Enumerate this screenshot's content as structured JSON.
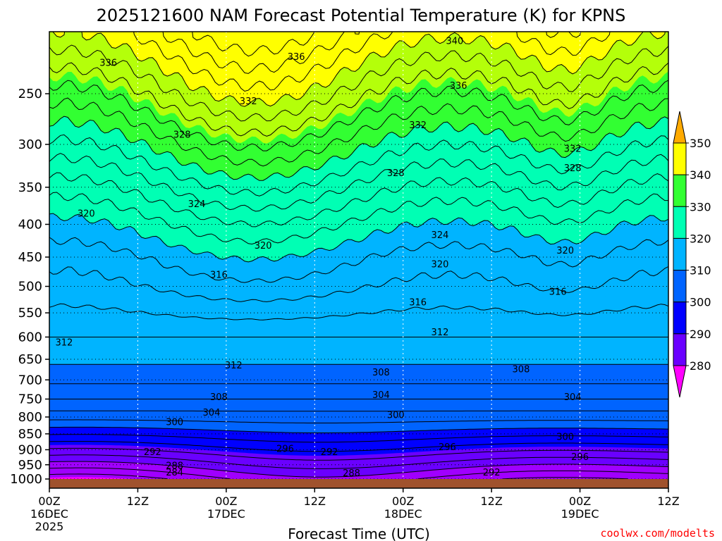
{
  "chart_data": {
    "type": "heatmap",
    "title": "2025121600 NAM Forecast Potential Temperature (K) for KPNS",
    "xlabel": "Forecast Time (UTC)",
    "ylabel": "",
    "x_ticks": [
      {
        "hours": 0,
        "lines": [
          "00Z",
          "16DEC",
          "2025"
        ]
      },
      {
        "hours": 12,
        "lines": [
          "12Z"
        ]
      },
      {
        "hours": 24,
        "lines": [
          "00Z",
          "17DEC"
        ]
      },
      {
        "hours": 36,
        "lines": [
          "12Z"
        ]
      },
      {
        "hours": 48,
        "lines": [
          "00Z",
          "18DEC"
        ]
      },
      {
        "hours": 60,
        "lines": [
          "12Z"
        ]
      },
      {
        "hours": 72,
        "lines": [
          "00Z",
          "19DEC"
        ]
      },
      {
        "hours": 84,
        "lines": [
          "12Z"
        ]
      }
    ],
    "xlim_hours": [
      0,
      84
    ],
    "y_ticks": [
      "250",
      "300",
      "350",
      "400",
      "450",
      "500",
      "550",
      "600",
      "650",
      "700",
      "750",
      "800",
      "850",
      "900",
      "950",
      "1000"
    ],
    "ylim_hpa": [
      1000,
      200
    ],
    "y_scale": "log",
    "grid": true,
    "colorbar": {
      "levels": [
        280,
        290,
        300,
        310,
        320,
        330,
        340,
        350
      ],
      "labels": [
        "280",
        "290",
        "300",
        "310",
        "320",
        "330",
        "340",
        "350"
      ],
      "colors": [
        "#ff00ff",
        "#a000ff",
        "#6a00ff",
        "#0000ff",
        "#0064ff",
        "#00b4ff",
        "#00ffb4",
        "#32ff32",
        "#b4ff0a",
        "#ffff00",
        "#ffaa00"
      ]
    },
    "contour_levels": [
      284,
      288,
      292,
      296,
      300,
      304,
      308,
      312,
      316,
      320,
      324,
      328,
      332,
      336,
      340
    ],
    "theta_profile": [
      {
        "p": 200,
        "theta": 343
      },
      {
        "p": 250,
        "theta": 336
      },
      {
        "p": 300,
        "theta": 330
      },
      {
        "p": 350,
        "theta": 325
      },
      {
        "p": 400,
        "theta": 321
      },
      {
        "p": 450,
        "theta": 318
      },
      {
        "p": 500,
        "theta": 316
      },
      {
        "p": 550,
        "theta": 314
      },
      {
        "p": 600,
        "theta": 312
      },
      {
        "p": 650,
        "theta": 310.5
      },
      {
        "p": 700,
        "theta": 308.5
      },
      {
        "p": 750,
        "theta": 306
      },
      {
        "p": 800,
        "theta": 303
      },
      {
        "p": 850,
        "theta": 299
      },
      {
        "p": 900,
        "theta": 295
      },
      {
        "p": 950,
        "theta": 291
      },
      {
        "p": 1000,
        "theta": 287
      }
    ],
    "contour_labels": [
      {
        "text": "340",
        "hours": 55,
        "p": 207
      },
      {
        "text": "336",
        "hours": 8,
        "p": 224
      },
      {
        "text": "336",
        "hours": 33.5,
        "p": 219
      },
      {
        "text": "336",
        "hours": 55.5,
        "p": 243
      },
      {
        "text": "332",
        "hours": 27,
        "p": 257
      },
      {
        "text": "332",
        "hours": 50,
        "p": 280
      },
      {
        "text": "332",
        "hours": 71,
        "p": 305
      },
      {
        "text": "328",
        "hours": 18,
        "p": 290
      },
      {
        "text": "328",
        "hours": 47,
        "p": 333
      },
      {
        "text": "328",
        "hours": 71,
        "p": 327
      },
      {
        "text": "324",
        "hours": 20,
        "p": 372
      },
      {
        "text": "324",
        "hours": 53,
        "p": 416
      },
      {
        "text": "320",
        "hours": 5,
        "p": 385
      },
      {
        "text": "320",
        "hours": 29,
        "p": 432
      },
      {
        "text": "320",
        "hours": 53,
        "p": 462
      },
      {
        "text": "320",
        "hours": 70,
        "p": 440
      },
      {
        "text": "316",
        "hours": 23,
        "p": 480
      },
      {
        "text": "316",
        "hours": 50,
        "p": 530
      },
      {
        "text": "316",
        "hours": 69,
        "p": 510
      },
      {
        "text": "312",
        "hours": 2,
        "p": 612
      },
      {
        "text": "312",
        "hours": 25,
        "p": 665
      },
      {
        "text": "312",
        "hours": 53,
        "p": 590
      },
      {
        "text": "308",
        "hours": 45,
        "p": 682
      },
      {
        "text": "308",
        "hours": 64,
        "p": 674
      },
      {
        "text": "308",
        "hours": 23,
        "p": 745
      },
      {
        "text": "304",
        "hours": 45,
        "p": 740
      },
      {
        "text": "304",
        "hours": 71,
        "p": 745
      },
      {
        "text": "304",
        "hours": 22,
        "p": 788
      },
      {
        "text": "300",
        "hours": 17,
        "p": 815
      },
      {
        "text": "300",
        "hours": 47,
        "p": 795
      },
      {
        "text": "300",
        "hours": 70,
        "p": 860
      },
      {
        "text": "296",
        "hours": 32,
        "p": 898
      },
      {
        "text": "296",
        "hours": 54,
        "p": 892
      },
      {
        "text": "296",
        "hours": 72,
        "p": 925
      },
      {
        "text": "292",
        "hours": 14,
        "p": 908
      },
      {
        "text": "292",
        "hours": 38,
        "p": 908
      },
      {
        "text": "292",
        "hours": 60,
        "p": 978
      },
      {
        "text": "288",
        "hours": 17,
        "p": 954
      },
      {
        "text": "288",
        "hours": 41,
        "p": 980
      },
      {
        "text": "284",
        "hours": 17,
        "p": 978
      }
    ]
  },
  "credit": "coolwx.com/modelts",
  "colors": {
    "ground": "#a0522d",
    "credit": "#ff0000",
    "background": "#ffffff"
  }
}
